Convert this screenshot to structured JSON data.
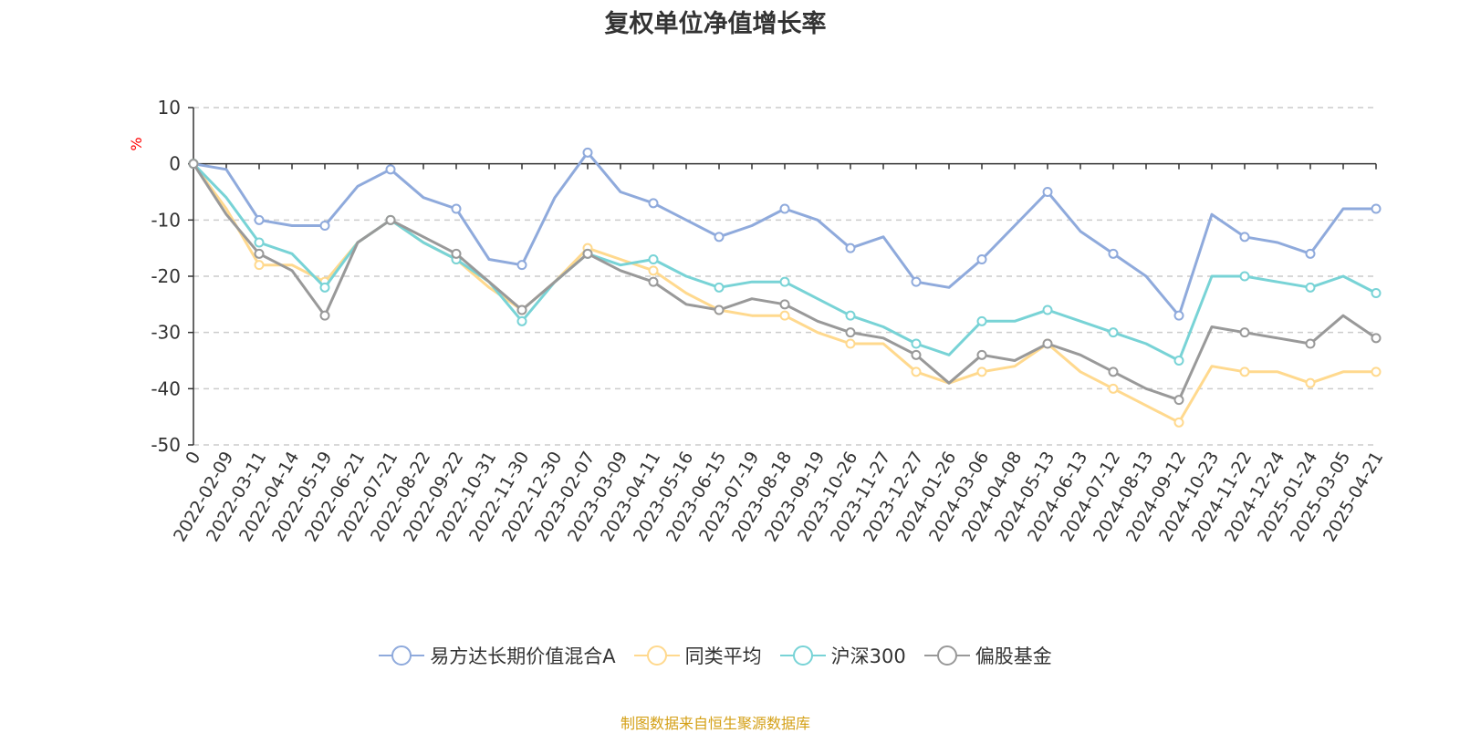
{
  "title": "复权单位净值增长率",
  "source_note": "制图数据来自恒生聚源数据库",
  "chart_data": {
    "type": "line",
    "title": "复权单位净值增长率",
    "ylabel": "%",
    "xlabel": "",
    "ylim": [
      -50,
      10
    ],
    "yticks": [
      10,
      0,
      -10,
      -20,
      -30,
      -40,
      -50
    ],
    "grid": true,
    "legend_position": "bottom",
    "categories": [
      "0",
      "2022-02-09",
      "2022-03-11",
      "2022-04-14",
      "2022-05-19",
      "2022-06-21",
      "2022-07-21",
      "2022-08-22",
      "2022-09-22",
      "2022-10-31",
      "2022-11-30",
      "2022-12-30",
      "2023-02-07",
      "2023-03-09",
      "2023-04-11",
      "2023-05-16",
      "2023-06-15",
      "2023-07-19",
      "2023-08-18",
      "2023-09-19",
      "2023-10-26",
      "2023-11-27",
      "2023-12-27",
      "2024-01-26",
      "2024-03-06",
      "2024-04-08",
      "2024-05-13",
      "2024-06-13",
      "2024-07-12",
      "2024-08-13",
      "2024-09-12",
      "2024-10-23",
      "2024-11-22",
      "2024-12-24",
      "2025-01-24",
      "2025-03-05",
      "2025-04-21"
    ],
    "series": [
      {
        "name": "易方达长期价值混合A",
        "color": "#8faadc",
        "values": [
          0,
          -1,
          -10,
          -11,
          -11,
          -4,
          -1,
          -6,
          -8,
          -17,
          -18,
          -6,
          2,
          -5,
          -7,
          -10,
          -13,
          -11,
          -8,
          -10,
          -15,
          -13,
          -21,
          -22,
          -17,
          -11,
          -5,
          -12,
          -16,
          -20,
          -27,
          -9,
          -13,
          -14,
          -16,
          -8,
          -8
        ]
      },
      {
        "name": "同类平均",
        "color": "#ffd98e",
        "values": [
          0,
          -8,
          -18,
          -18,
          -21,
          -14,
          -10,
          -14,
          -17,
          -22,
          -26,
          -21,
          -15,
          -17,
          -19,
          -23,
          -26,
          -27,
          -27,
          -30,
          -32,
          -32,
          -37,
          -39,
          -37,
          -36,
          -32,
          -37,
          -40,
          -43,
          -46,
          -36,
          -37,
          -37,
          -39,
          -37,
          -37
        ]
      },
      {
        "name": "沪深300",
        "color": "#78d3d6",
        "values": [
          0,
          -6,
          -14,
          -16,
          -22,
          -14,
          -10,
          -14,
          -17,
          -21,
          -28,
          -21,
          -16,
          -18,
          -17,
          -20,
          -22,
          -21,
          -21,
          -24,
          -27,
          -29,
          -32,
          -34,
          -28,
          -28,
          -26,
          -28,
          -30,
          -32,
          -35,
          -20,
          -20,
          -21,
          -22,
          -20,
          -23
        ]
      },
      {
        "name": "偏股基金",
        "color": "#999999",
        "values": [
          0,
          -9,
          -16,
          -19,
          -27,
          -14,
          -10,
          -13,
          -16,
          -21,
          -26,
          -21,
          -16,
          -19,
          -21,
          -25,
          -26,
          -24,
          -25,
          -28,
          -30,
          -31,
          -34,
          -39,
          -34,
          -35,
          -32,
          -34,
          -37,
          -40,
          -42,
          -29,
          -30,
          -31,
          -32,
          -27,
          -31
        ]
      }
    ]
  }
}
